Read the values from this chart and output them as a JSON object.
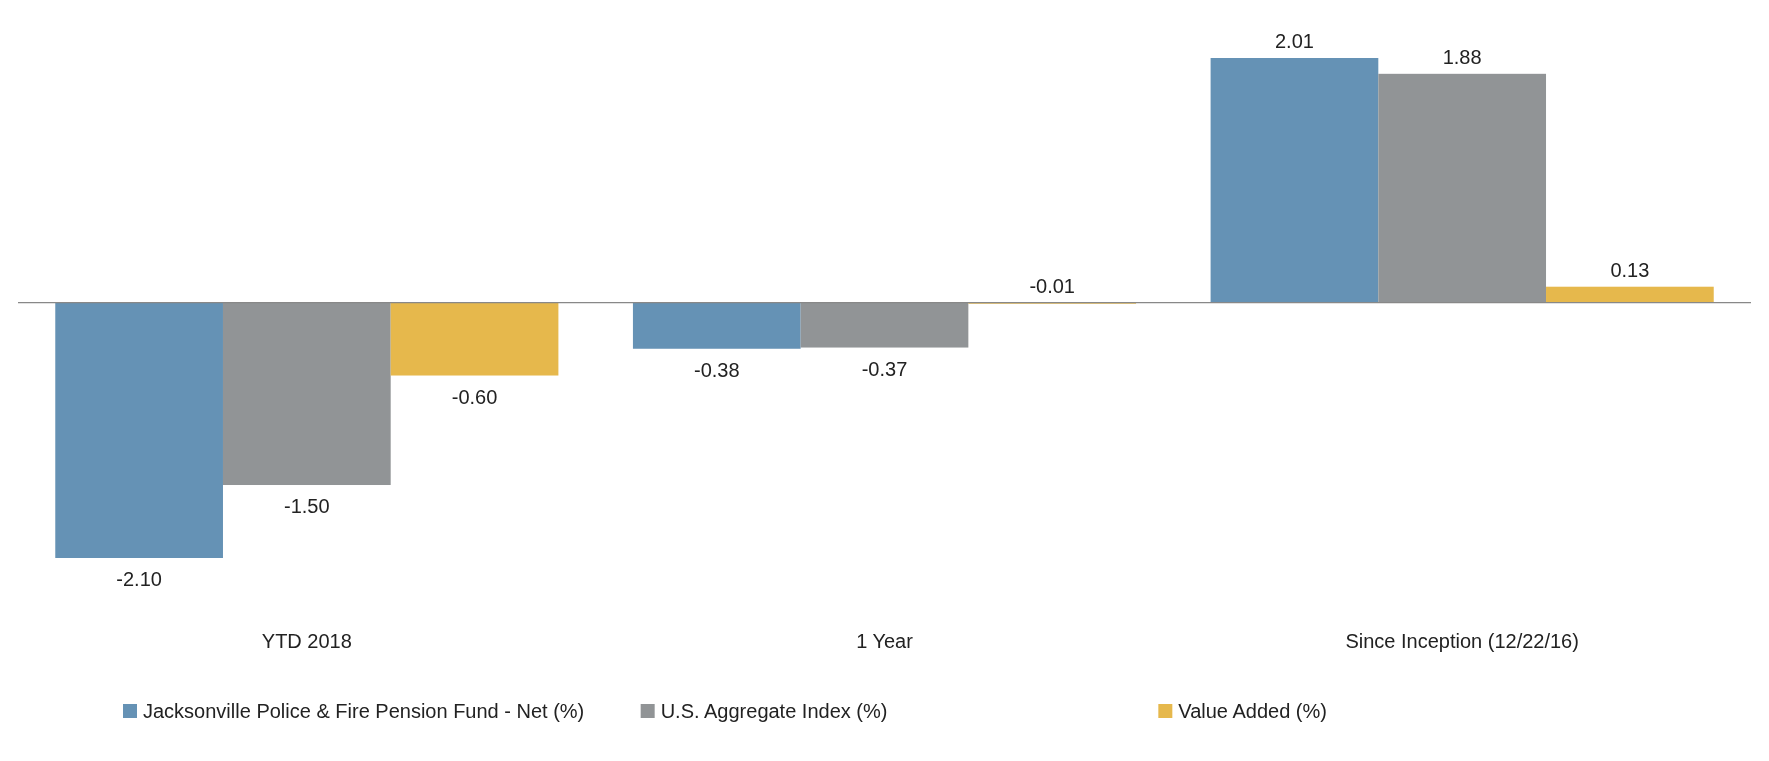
{
  "chart_data": {
    "type": "bar",
    "categories": [
      "YTD 2018",
      "1 Year",
      "Since Inception (12/22/16)"
    ],
    "series": [
      {
        "name": "Jacksonville Police & Fire Pension Fund - Net (%)",
        "color": "#6592b5",
        "values": [
          -2.1,
          -0.38,
          2.01
        ],
        "value_labels": [
          "-2.10",
          "-0.38",
          "2.01"
        ]
      },
      {
        "name": "U.S. Aggregate Index (%)",
        "color": "#919496",
        "values": [
          -1.5,
          -0.37,
          1.88
        ],
        "value_labels": [
          "-1.50",
          "-0.37",
          "1.88"
        ]
      },
      {
        "name": "Value Added (%)",
        "color": "#e6b84c",
        "values": [
          -0.6,
          -0.01,
          0.13
        ],
        "value_labels": [
          "-0.60",
          "-0.01",
          "0.13"
        ]
      }
    ],
    "legend": "bottom"
  }
}
